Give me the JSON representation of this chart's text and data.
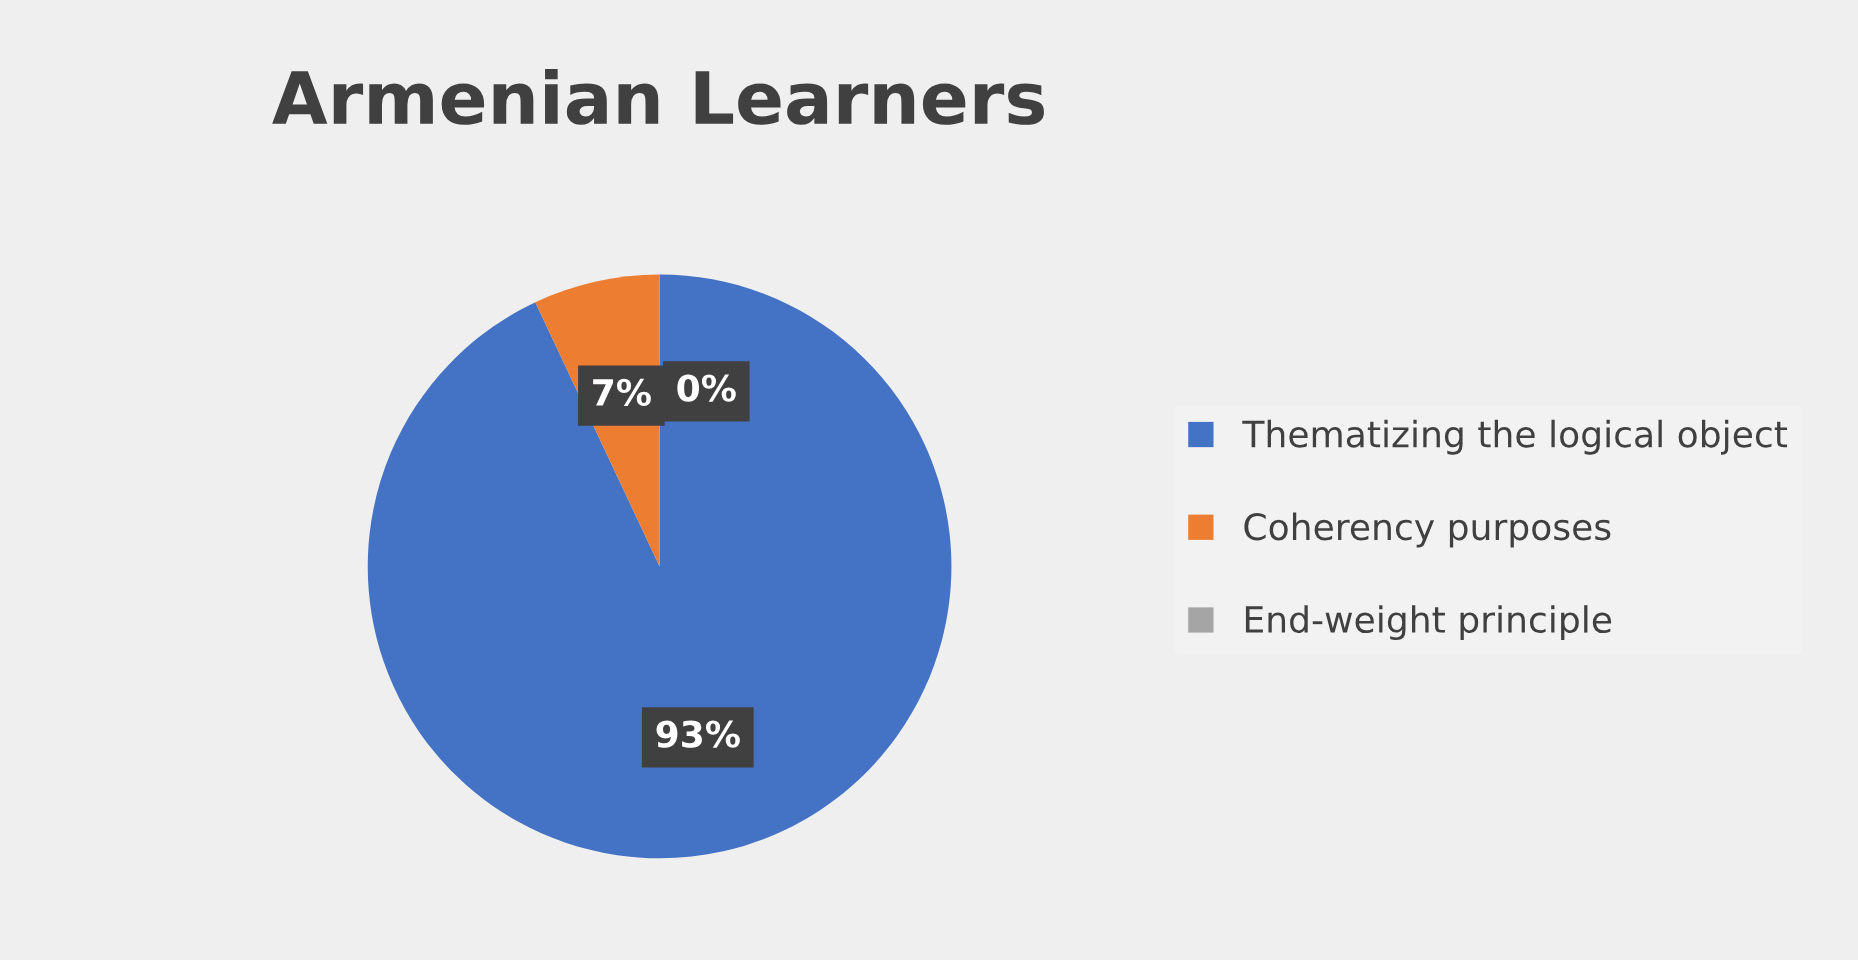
{
  "chart_data": {
    "type": "pie",
    "title": "Armenian Learners",
    "categories": [
      "Thematizing the logical object",
      "Coherency purposes",
      "End-weight principle"
    ],
    "values": [
      93,
      7,
      0
    ],
    "colors": [
      "#4472c4",
      "#ed7d31",
      "#a5a5a5"
    ],
    "value_labels": [
      "93%",
      "7%",
      "0%"
    ],
    "legend": "right"
  }
}
